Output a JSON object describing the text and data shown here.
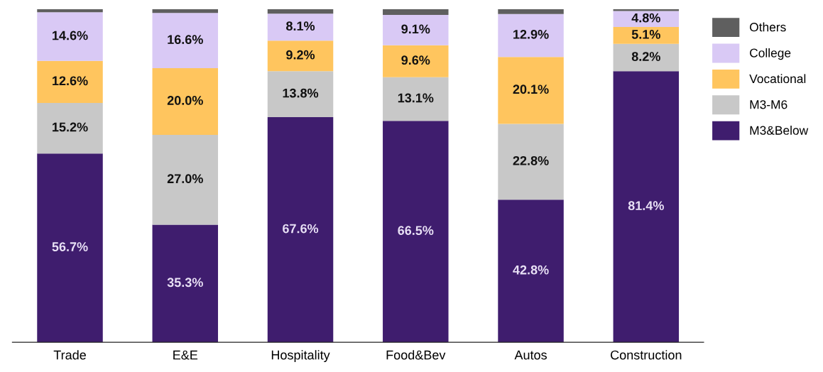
{
  "chart_data": {
    "type": "bar",
    "stacked": true,
    "categories": [
      "Trade",
      "E&E",
      "Hospitality",
      "Food&Bev",
      "Autos",
      "Construction"
    ],
    "series": [
      {
        "name": "M3&Below",
        "color": "#3f1d6e",
        "values": [
          56.7,
          35.3,
          67.6,
          66.5,
          42.8,
          81.4
        ],
        "value_labels": [
          "56.7%",
          "35.3%",
          "67.6%",
          "66.5%",
          "42.8%",
          "81.4%"
        ]
      },
      {
        "name": "M3-M6",
        "color": "#c8c8c8",
        "values": [
          15.2,
          27.0,
          13.8,
          13.1,
          22.8,
          8.2
        ],
        "value_labels": [
          "15.2%",
          "27.0%",
          "13.8%",
          "13.1%",
          "22.8%",
          "8.2%"
        ]
      },
      {
        "name": "Vocational",
        "color": "#ffc55e",
        "values": [
          12.6,
          20.0,
          9.2,
          9.6,
          20.1,
          5.1
        ],
        "value_labels": [
          "12.6%",
          "20.0%",
          "9.2%",
          "9.6%",
          "20.1%",
          "5.1%"
        ]
      },
      {
        "name": "College",
        "color": "#d9c9f5",
        "values": [
          14.6,
          16.6,
          8.1,
          9.1,
          12.9,
          4.8
        ],
        "value_labels": [
          "14.6%",
          "16.6%",
          "8.1%",
          "9.1%",
          "12.9%",
          "4.8%"
        ]
      },
      {
        "name": "Others",
        "color": "#5f5f5f",
        "values": [
          0.9,
          1.1,
          1.3,
          1.7,
          1.4,
          0.5
        ],
        "value_labels": [
          null,
          null,
          null,
          null,
          null,
          null
        ]
      }
    ],
    "ylim": [
      0,
      100
    ],
    "tick_labels": "x",
    "legend": "right"
  }
}
